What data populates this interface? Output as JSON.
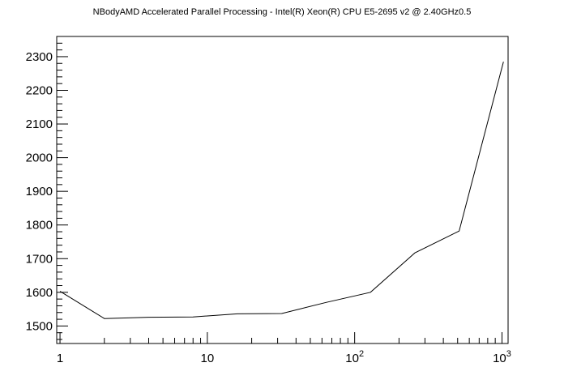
{
  "chart_data": {
    "type": "line",
    "title": "NBodyAMD Accelerated Parallel Processing - Intel(R) Xeon(R) CPU E5-2695 v2 @ 2.40GHz0.5",
    "xlabel": "",
    "ylabel": "",
    "x_scale": "log10",
    "xlim": [
      0.95,
      1100
    ],
    "ylim": [
      1448,
      2360
    ],
    "grid": false,
    "x_tick_labels": [
      {
        "value": 1,
        "base": "1",
        "exp": ""
      },
      {
        "value": 10,
        "base": "10",
        "exp": ""
      },
      {
        "value": 100,
        "base": "10",
        "exp": "2"
      },
      {
        "value": 1000,
        "base": "10",
        "exp": "3"
      }
    ],
    "y_ticks": [
      1500,
      1600,
      1700,
      1800,
      1900,
      2000,
      2100,
      2200,
      2300
    ],
    "y_tick_labels": [
      "1500",
      "1600",
      "1700",
      "1800",
      "1900",
      "2000",
      "2100",
      "2200",
      "2300"
    ],
    "series": [
      {
        "color": "#000000",
        "x": [
          1,
          2,
          4,
          8,
          16,
          32,
          64,
          128,
          256,
          512,
          1024
        ],
        "y": [
          1603,
          1522,
          1526,
          1527,
          1536,
          1537,
          1570,
          1600,
          1717,
          1782,
          2285
        ]
      }
    ]
  }
}
